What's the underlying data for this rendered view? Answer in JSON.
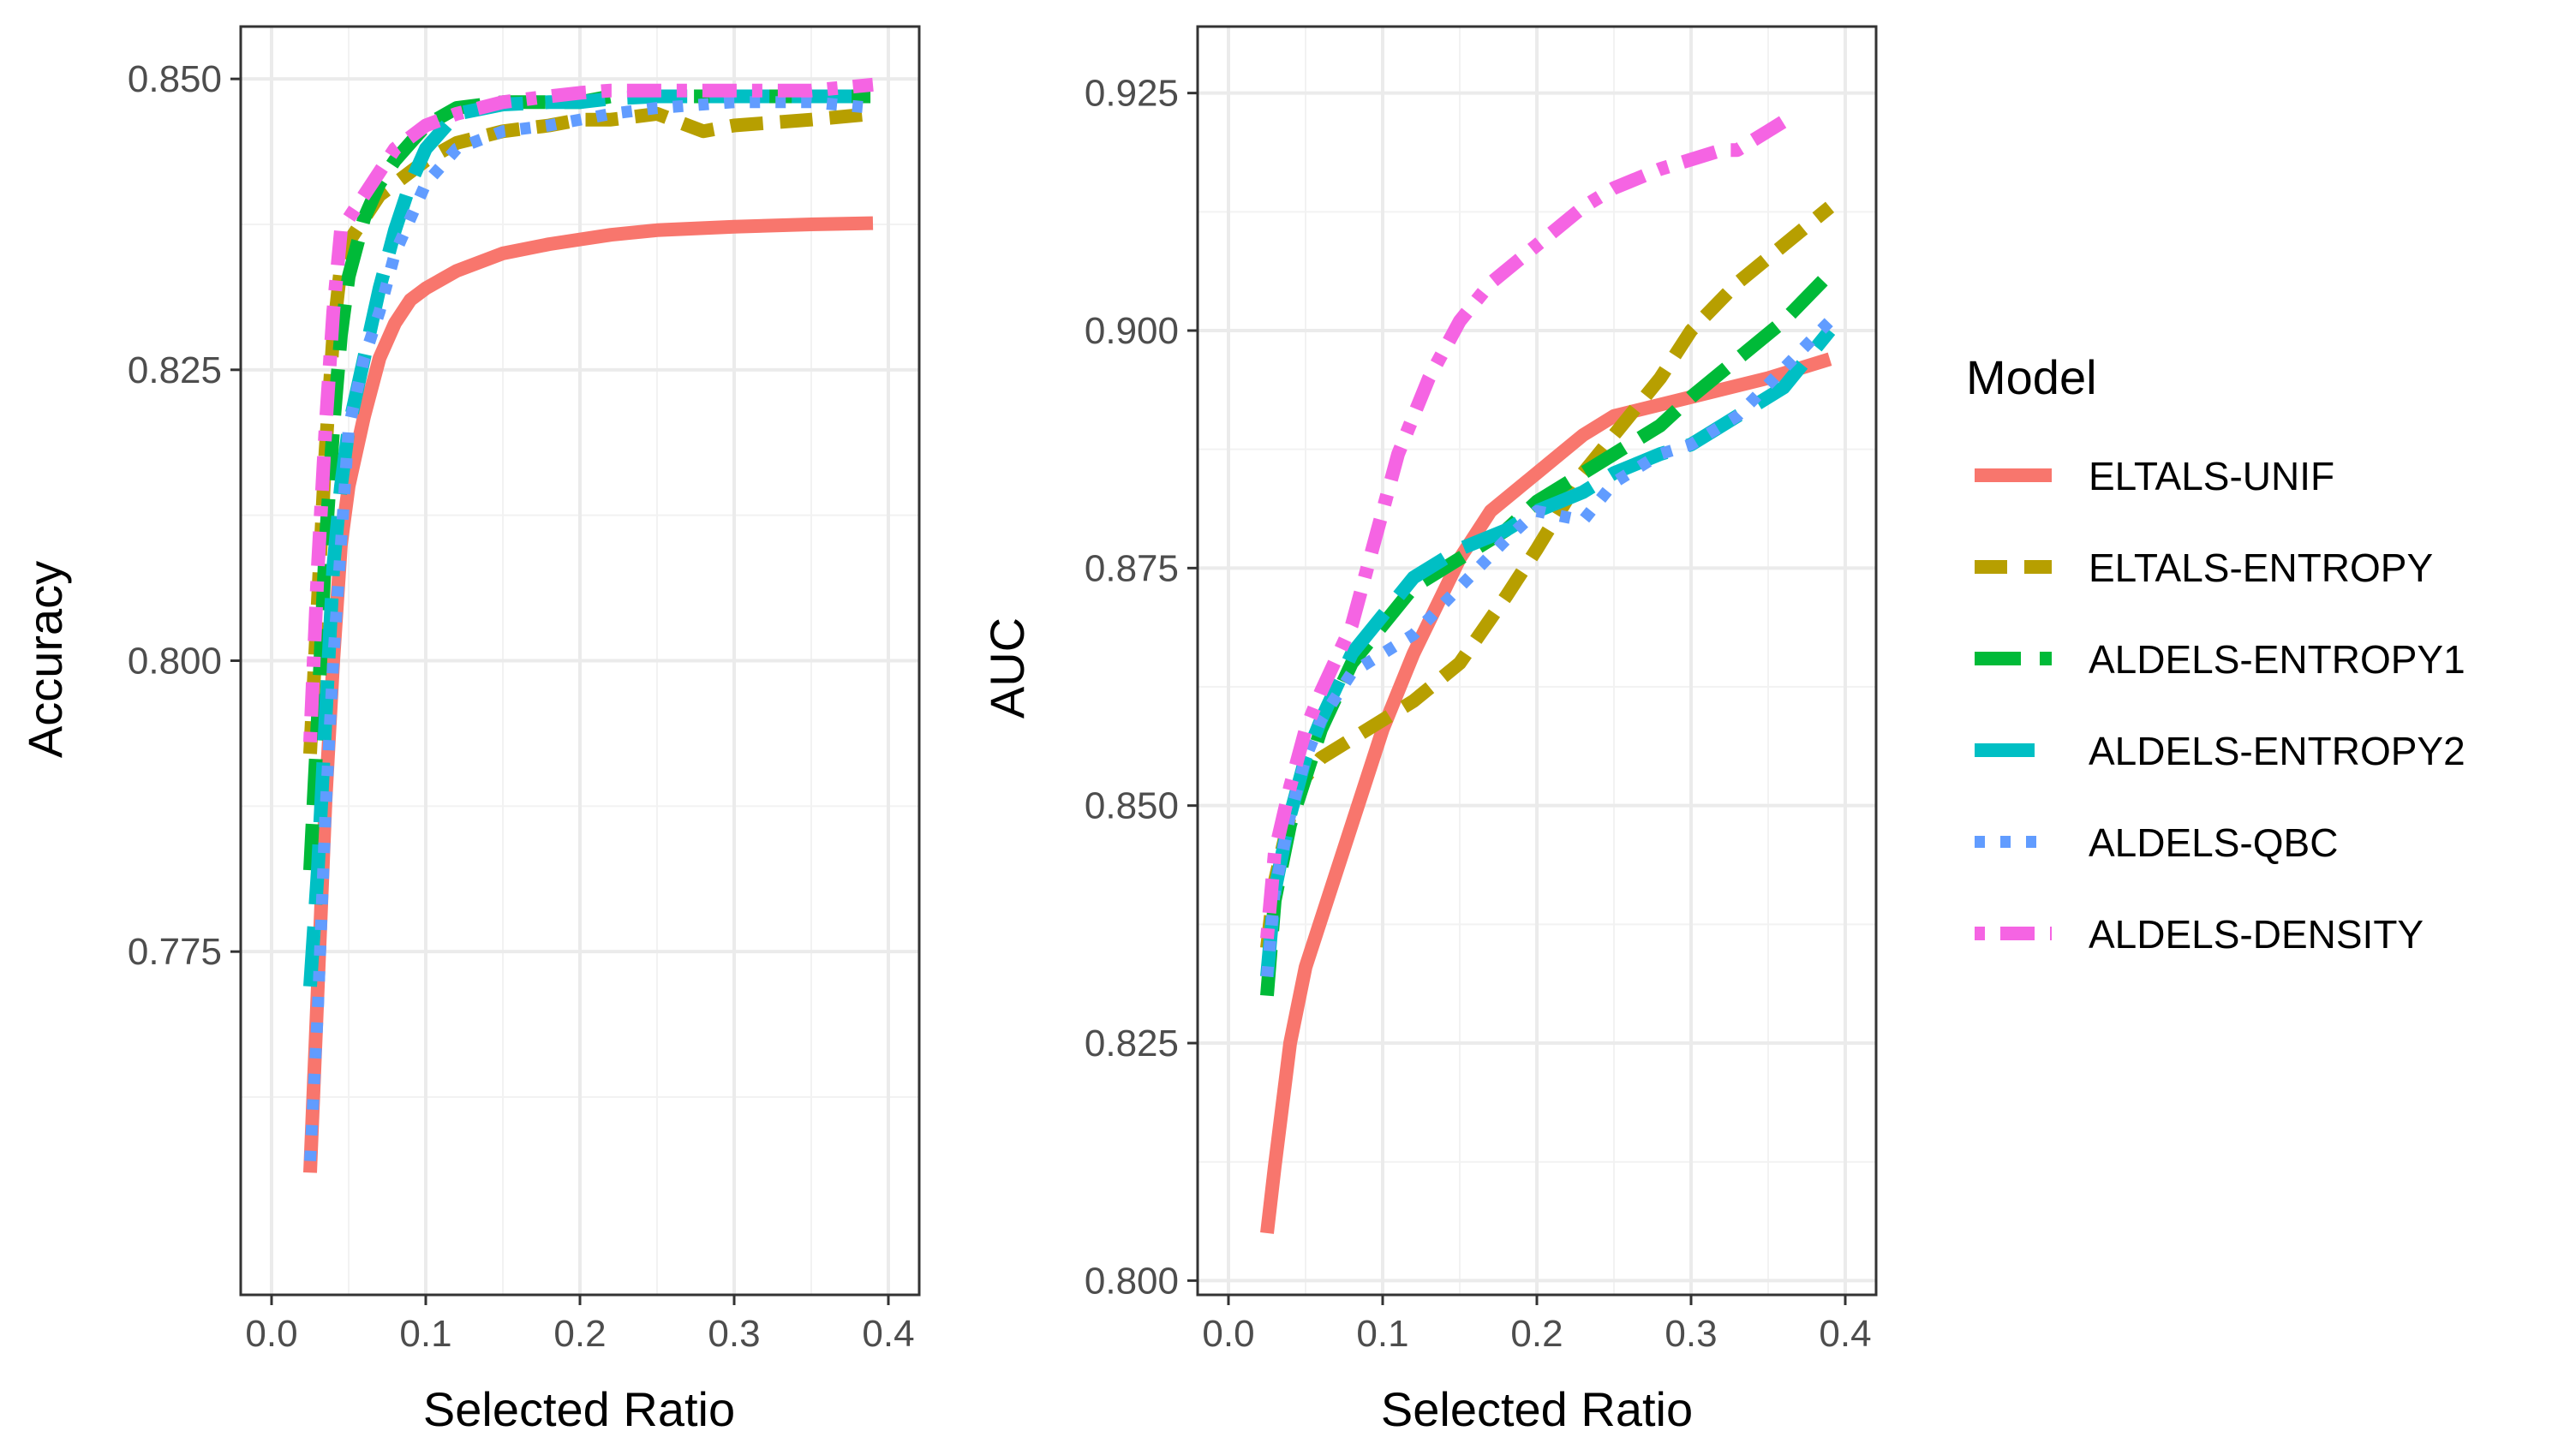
{
  "chart_data": [
    {
      "type": "line",
      "id": "accuracy",
      "xlabel": "Selected Ratio",
      "ylabel": "Accuracy",
      "xlim": [
        -0.02,
        0.42
      ],
      "ylim": [
        0.7455,
        0.8545
      ],
      "x_ticks": [
        0.0,
        0.1,
        0.2,
        0.3,
        0.4
      ],
      "x_tick_labels": [
        "0.0",
        "0.1",
        "0.2",
        "0.3",
        "0.4"
      ],
      "y_ticks": [
        0.775,
        0.8,
        0.825,
        0.85
      ],
      "y_tick_labels": [
        "0.775",
        "0.800",
        "0.825",
        "0.850"
      ],
      "series": [
        {
          "name": "ELTALS-UNIF",
          "x": [
            0.025,
            0.03,
            0.035,
            0.04,
            0.045,
            0.05,
            0.06,
            0.07,
            0.08,
            0.09,
            0.1,
            0.12,
            0.15,
            0.18,
            0.2,
            0.22,
            0.25,
            0.3,
            0.35,
            0.39
          ],
          "y": [
            0.756,
            0.772,
            0.788,
            0.8,
            0.81,
            0.815,
            0.821,
            0.826,
            0.829,
            0.831,
            0.832,
            0.8335,
            0.835,
            0.8358,
            0.8362,
            0.8366,
            0.837,
            0.8373,
            0.8375,
            0.8376
          ]
        },
        {
          "name": "ELTALS-ENTROPY",
          "x": [
            0.025,
            0.03,
            0.035,
            0.04,
            0.045,
            0.05,
            0.06,
            0.07,
            0.08,
            0.09,
            0.1,
            0.12,
            0.15,
            0.18,
            0.2,
            0.22,
            0.25,
            0.28,
            0.3,
            0.35,
            0.39
          ],
          "y": [
            0.792,
            0.805,
            0.818,
            0.828,
            0.834,
            0.836,
            0.838,
            0.84,
            0.841,
            0.842,
            0.843,
            0.8445,
            0.8455,
            0.846,
            0.8465,
            0.8465,
            0.847,
            0.8455,
            0.846,
            0.8465,
            0.847
          ]
        },
        {
          "name": "ALDELS-ENTROPY1",
          "x": [
            0.025,
            0.03,
            0.035,
            0.04,
            0.045,
            0.05,
            0.06,
            0.07,
            0.08,
            0.09,
            0.1,
            0.12,
            0.15,
            0.18,
            0.2,
            0.22,
            0.25,
            0.3,
            0.35,
            0.39
          ],
          "y": [
            0.782,
            0.795,
            0.81,
            0.82,
            0.828,
            0.833,
            0.838,
            0.841,
            0.843,
            0.8445,
            0.846,
            0.8475,
            0.848,
            0.848,
            0.848,
            0.8485,
            0.8485,
            0.8485,
            0.8485,
            0.8485
          ]
        },
        {
          "name": "ALDELS-ENTROPY2",
          "x": [
            0.025,
            0.03,
            0.035,
            0.04,
            0.045,
            0.05,
            0.06,
            0.07,
            0.08,
            0.09,
            0.1,
            0.12,
            0.15,
            0.18,
            0.2,
            0.22,
            0.25,
            0.3,
            0.35,
            0.39
          ],
          "y": [
            0.772,
            0.782,
            0.795,
            0.808,
            0.815,
            0.82,
            0.826,
            0.832,
            0.837,
            0.841,
            0.844,
            0.847,
            0.8478,
            0.848,
            0.848,
            0.8483,
            0.8485,
            0.8485,
            0.8485,
            0.8485
          ]
        },
        {
          "name": "ALDELS-QBC",
          "x": [
            0.025,
            0.03,
            0.035,
            0.04,
            0.045,
            0.05,
            0.06,
            0.07,
            0.08,
            0.09,
            0.1,
            0.12,
            0.15,
            0.18,
            0.2,
            0.22,
            0.25,
            0.3,
            0.35,
            0.39
          ],
          "y": [
            0.757,
            0.77,
            0.787,
            0.8,
            0.81,
            0.82,
            0.826,
            0.83,
            0.835,
            0.838,
            0.841,
            0.844,
            0.8455,
            0.846,
            0.8465,
            0.847,
            0.8475,
            0.848,
            0.848,
            0.8475
          ]
        },
        {
          "name": "ALDELS-DENSITY",
          "x": [
            0.025,
            0.03,
            0.035,
            0.04,
            0.045,
            0.05,
            0.06,
            0.07,
            0.08,
            0.09,
            0.1,
            0.12,
            0.15,
            0.18,
            0.2,
            0.22,
            0.25,
            0.3,
            0.35,
            0.39
          ],
          "y": [
            0.793,
            0.808,
            0.82,
            0.83,
            0.837,
            0.838,
            0.84,
            0.842,
            0.844,
            0.845,
            0.846,
            0.847,
            0.848,
            0.8485,
            0.8488,
            0.849,
            0.849,
            0.849,
            0.849,
            0.8495
          ]
        }
      ]
    },
    {
      "type": "line",
      "id": "auc",
      "xlabel": "Selected Ratio",
      "ylabel": "AUC",
      "xlim": [
        -0.02,
        0.42
      ],
      "ylim": [
        0.7985,
        0.932
      ],
      "x_ticks": [
        0.0,
        0.1,
        0.2,
        0.3,
        0.4
      ],
      "x_tick_labels": [
        "0.0",
        "0.1",
        "0.2",
        "0.3",
        "0.4"
      ],
      "y_ticks": [
        0.8,
        0.825,
        0.85,
        0.875,
        0.9,
        0.925
      ],
      "y_tick_labels": [
        "0.800",
        "0.825",
        "0.850",
        "0.875",
        "0.900",
        "0.925"
      ],
      "series": [
        {
          "name": "ELTALS-UNIF",
          "x": [
            0.025,
            0.03,
            0.04,
            0.05,
            0.07,
            0.09,
            0.1,
            0.12,
            0.15,
            0.17,
            0.2,
            0.23,
            0.25,
            0.3,
            0.35,
            0.39
          ],
          "y": [
            0.805,
            0.812,
            0.825,
            0.833,
            0.843,
            0.853,
            0.858,
            0.866,
            0.876,
            0.881,
            0.885,
            0.889,
            0.891,
            0.893,
            0.895,
            0.897
          ]
        },
        {
          "name": "ELTALS-ENTROPY",
          "x": [
            0.025,
            0.03,
            0.04,
            0.05,
            0.06,
            0.08,
            0.1,
            0.12,
            0.15,
            0.18,
            0.2,
            0.23,
            0.25,
            0.28,
            0.3,
            0.33,
            0.36,
            0.39
          ],
          "y": [
            0.835,
            0.842,
            0.849,
            0.853,
            0.855,
            0.857,
            0.859,
            0.861,
            0.865,
            0.872,
            0.877,
            0.885,
            0.889,
            0.895,
            0.9,
            0.905,
            0.909,
            0.913
          ]
        },
        {
          "name": "ALDELS-ENTROPY1",
          "x": [
            0.025,
            0.03,
            0.04,
            0.05,
            0.06,
            0.08,
            0.1,
            0.12,
            0.15,
            0.18,
            0.2,
            0.23,
            0.25,
            0.28,
            0.3,
            0.33,
            0.36,
            0.39
          ],
          "y": [
            0.83,
            0.84,
            0.848,
            0.853,
            0.858,
            0.865,
            0.869,
            0.873,
            0.876,
            0.879,
            0.882,
            0.885,
            0.887,
            0.89,
            0.893,
            0.897,
            0.901,
            0.906
          ]
        },
        {
          "name": "ALDELS-ENTROPY2",
          "x": [
            0.025,
            0.03,
            0.04,
            0.05,
            0.06,
            0.08,
            0.1,
            0.12,
            0.15,
            0.18,
            0.2,
            0.23,
            0.25,
            0.28,
            0.3,
            0.33,
            0.36,
            0.39
          ],
          "y": [
            0.832,
            0.841,
            0.849,
            0.855,
            0.859,
            0.866,
            0.87,
            0.874,
            0.877,
            0.879,
            0.881,
            0.883,
            0.885,
            0.887,
            0.888,
            0.891,
            0.894,
            0.9
          ]
        },
        {
          "name": "ALDELS-QBC",
          "x": [
            0.025,
            0.03,
            0.04,
            0.05,
            0.06,
            0.08,
            0.1,
            0.12,
            0.15,
            0.18,
            0.2,
            0.23,
            0.25,
            0.28,
            0.3,
            0.33,
            0.36,
            0.39
          ],
          "y": [
            0.832,
            0.841,
            0.849,
            0.855,
            0.859,
            0.864,
            0.866,
            0.868,
            0.873,
            0.878,
            0.881,
            0.88,
            0.884,
            0.887,
            0.888,
            0.891,
            0.896,
            0.901
          ]
        },
        {
          "name": "ALDELS-DENSITY",
          "x": [
            0.025,
            0.03,
            0.04,
            0.05,
            0.06,
            0.08,
            0.1,
            0.11,
            0.12,
            0.13,
            0.15,
            0.17,
            0.2,
            0.23,
            0.25,
            0.28,
            0.3,
            0.32,
            0.33,
            0.35,
            0.36
          ],
          "y": [
            0.836,
            0.845,
            0.852,
            0.858,
            0.862,
            0.869,
            0.881,
            0.887,
            0.891,
            0.895,
            0.901,
            0.905,
            0.909,
            0.913,
            0.915,
            0.917,
            0.918,
            0.919,
            0.919,
            0.921,
            0.922
          ]
        }
      ]
    }
  ],
  "legend": {
    "title": "Model",
    "entries": [
      "ELTALS-UNIF",
      "ELTALS-ENTROPY",
      "ALDELS-ENTROPY1",
      "ALDELS-ENTROPY2",
      "ALDELS-QBC",
      "ALDELS-DENSITY"
    ]
  },
  "series_colors": {
    "ELTALS-UNIF": "#F8766D",
    "ELTALS-ENTROPY": "#B79F00",
    "ALDELS-ENTROPY1": "#00BA38",
    "ALDELS-ENTROPY2": "#00BFC4",
    "ALDELS-QBC": "#619CFF",
    "ALDELS-DENSITY": "#F564E3"
  }
}
